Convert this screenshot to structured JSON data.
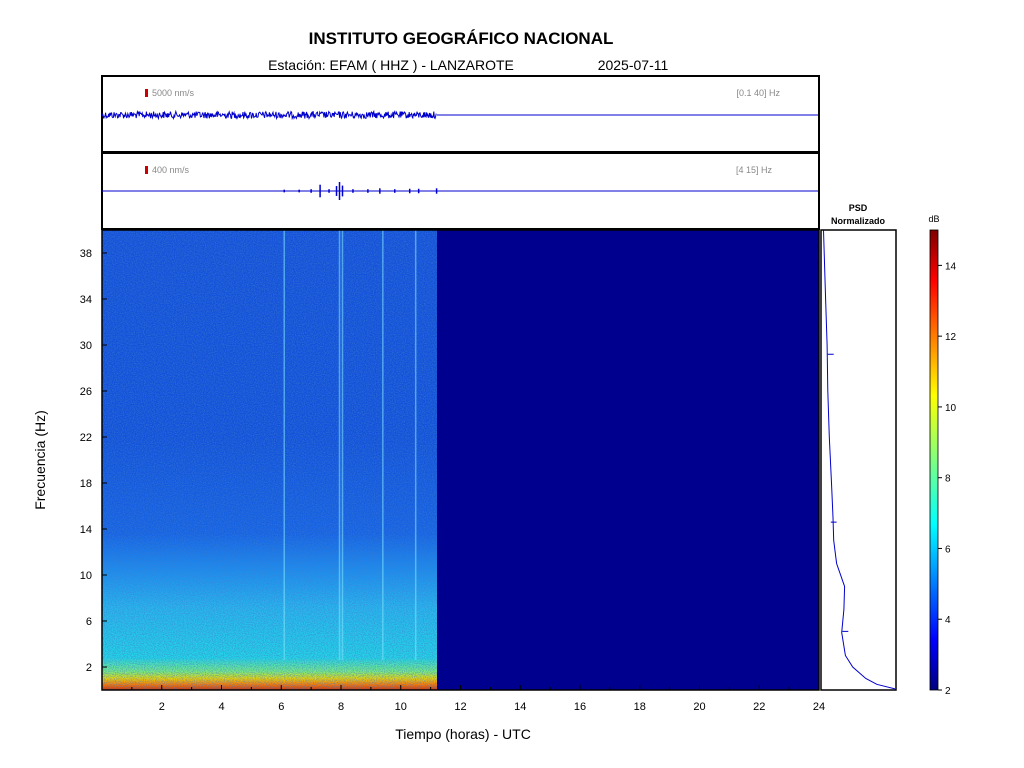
{
  "header": {
    "title": "INSTITUTO GEOGRÁFICO NACIONAL",
    "station": "Estación:  EFAM ( HHZ ) - LANZAROTE",
    "date": "2025-07-11"
  },
  "colors": {
    "trace": "#0000cc",
    "scale_marker": "#cc0000",
    "spectrogram_empty": "#00008f"
  },
  "chart_data": [
    {
      "type": "line",
      "name_label": "seismogram-broadband",
      "amplitude_scale": "5000 nm/s",
      "filter": "[0.1 40] Hz",
      "x_range": [
        0,
        24
      ],
      "data_end_hour": 11.2,
      "description_values": {
        "noise_level": "continuous",
        "events": []
      }
    },
    {
      "type": "line",
      "name_label": "seismogram-filtered",
      "amplitude_scale": "400 nm/s",
      "filter": "[4 15] Hz",
      "x_range": [
        0,
        24
      ],
      "data_end_hour": 11.2,
      "events": [
        {
          "t": 6.1,
          "amp": 0.15
        },
        {
          "t": 6.6,
          "amp": 0.15
        },
        {
          "t": 7.0,
          "amp": 0.2
        },
        {
          "t": 7.3,
          "amp": 0.7
        },
        {
          "t": 7.6,
          "amp": 0.2
        },
        {
          "t": 7.85,
          "amp": 0.55
        },
        {
          "t": 7.95,
          "amp": 1.0
        },
        {
          "t": 8.05,
          "amp": 0.6
        },
        {
          "t": 8.4,
          "amp": 0.2
        },
        {
          "t": 8.9,
          "amp": 0.2
        },
        {
          "t": 9.3,
          "amp": 0.3
        },
        {
          "t": 9.8,
          "amp": 0.2
        },
        {
          "t": 10.3,
          "amp": 0.25
        },
        {
          "t": 10.6,
          "amp": 0.25
        },
        {
          "t": 11.2,
          "amp": 0.3
        }
      ]
    },
    {
      "type": "heatmap",
      "name_label": "spectrogram",
      "xlabel": "Tiempo (horas) - UTC",
      "ylabel": "Frecuencia  (Hz)",
      "xlim": [
        0,
        24
      ],
      "ylim": [
        0,
        40
      ],
      "xticks": [
        2,
        4,
        6,
        8,
        10,
        12,
        14,
        16,
        18,
        20,
        22,
        24
      ],
      "yticks": [
        2,
        6,
        10,
        14,
        18,
        22,
        26,
        30,
        34,
        38
      ],
      "data_end_hour": 11.2,
      "vertical_lines_hours": [
        6.1,
        7.95,
        8.05,
        9.4,
        10.5
      ],
      "bands": [
        {
          "f_from": 0,
          "f_to": 1,
          "level_db": 13
        },
        {
          "f_from": 1,
          "f_to": 2,
          "level_db": 10
        },
        {
          "f_from": 2,
          "f_to": 4,
          "level_db": 7
        },
        {
          "f_from": 4,
          "f_to": 10,
          "level_db": 6
        },
        {
          "f_from": 10,
          "f_to": 16,
          "level_db": 4.7
        },
        {
          "f_from": 16,
          "f_to": 40,
          "level_db": 4
        }
      ]
    },
    {
      "type": "line",
      "name_label": "psd",
      "title": "PSD\nNormalizado",
      "ylim": [
        0,
        40
      ],
      "points": [
        {
          "f": 0.1,
          "v": 1.0
        },
        {
          "f": 0.5,
          "v": 0.75
        },
        {
          "f": 1,
          "v": 0.6
        },
        {
          "f": 2,
          "v": 0.42
        },
        {
          "f": 3,
          "v": 0.32
        },
        {
          "f": 5,
          "v": 0.27
        },
        {
          "f": 7,
          "v": 0.3
        },
        {
          "f": 9,
          "v": 0.31
        },
        {
          "f": 11,
          "v": 0.2
        },
        {
          "f": 13,
          "v": 0.16
        },
        {
          "f": 15,
          "v": 0.15
        },
        {
          "f": 18,
          "v": 0.13
        },
        {
          "f": 22,
          "v": 0.1
        },
        {
          "f": 26,
          "v": 0.08
        },
        {
          "f": 30,
          "v": 0.07
        },
        {
          "f": 34,
          "v": 0.05
        },
        {
          "f": 38,
          "v": 0.03
        },
        {
          "f": 40,
          "v": 0.02
        }
      ],
      "spikes": [
        {
          "f": 5.1,
          "v": 0.36
        },
        {
          "f": 14.6,
          "v": 0.2
        },
        {
          "f": 29.2,
          "v": 0.16
        }
      ]
    },
    {
      "type": "heatmap",
      "name_label": "colorbar",
      "unit": "dB",
      "range": [
        2,
        15
      ],
      "ticks": [
        2,
        4,
        6,
        8,
        10,
        12,
        14
      ]
    }
  ]
}
